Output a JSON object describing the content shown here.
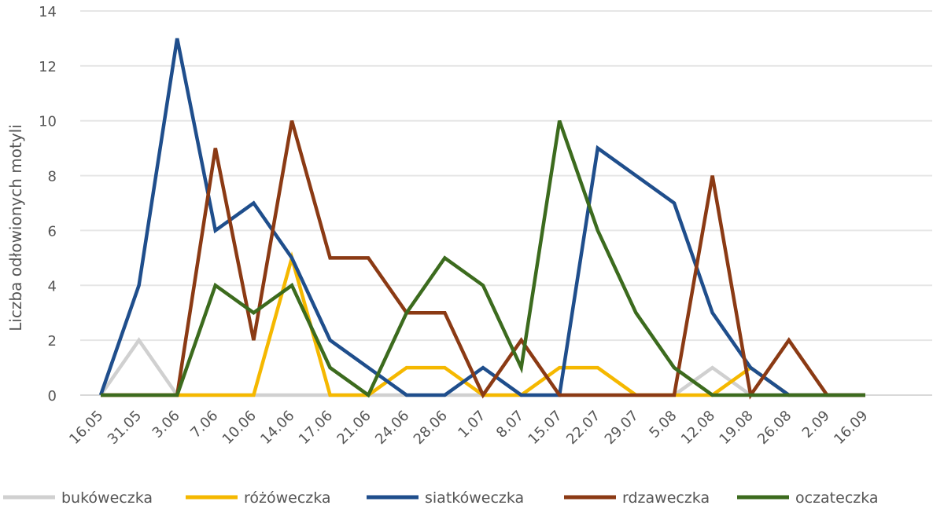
{
  "chart_data": {
    "type": "line",
    "ylabel": "Liczba odłowionych motyli",
    "xlabel": "",
    "ylim": [
      0,
      14
    ],
    "yticks": [
      0,
      2,
      4,
      6,
      8,
      10,
      12,
      14
    ],
    "ytick_labels": [
      "0",
      "2",
      "4",
      "6",
      "8",
      "10",
      "12",
      "14"
    ],
    "grid": true,
    "legend_position": "bottom",
    "categories": [
      "16.05",
      "31.05",
      "3.06",
      "7.06",
      "10.06",
      "14.06",
      "17.06",
      "21.06",
      "24.06",
      "28.06",
      "1.07",
      "8.07",
      "15.07",
      "22.07",
      "29.07",
      "5.08",
      "12.08",
      "19.08",
      "26.08",
      "2.09",
      "16.09"
    ],
    "series": [
      {
        "name": "bukóweczka",
        "color": "#d0d0d0",
        "values": [
          0,
          2,
          0,
          0,
          0,
          0,
          0,
          0,
          0,
          0,
          0,
          0,
          0,
          0,
          0,
          0,
          1,
          0,
          0,
          0,
          0
        ]
      },
      {
        "name": "różóweczka",
        "color": "#f5b800",
        "values": [
          0,
          0,
          0,
          0,
          0,
          5,
          0,
          0,
          1,
          1,
          0,
          0,
          1,
          1,
          0,
          0,
          0,
          1,
          0,
          0,
          0
        ]
      },
      {
        "name": "siatkóweczka",
        "color": "#1f4e8c",
        "values": [
          0,
          4,
          13,
          6,
          7,
          5,
          2,
          1,
          0,
          0,
          1,
          0,
          0,
          9,
          8,
          7,
          3,
          1,
          0,
          0,
          0
        ]
      },
      {
        "name": "rdzaweczka",
        "color": "#8b3a14",
        "values": [
          0,
          0,
          0,
          9,
          2,
          10,
          5,
          5,
          3,
          3,
          0,
          2,
          0,
          0,
          0,
          0,
          8,
          0,
          2,
          0,
          0
        ]
      },
      {
        "name": "oczateczka",
        "color": "#3c6b1e",
        "values": [
          0,
          0,
          0,
          4,
          3,
          4,
          1,
          0,
          3,
          5,
          4,
          1,
          10,
          6,
          3,
          1,
          0,
          0,
          0,
          0,
          0
        ]
      }
    ]
  }
}
